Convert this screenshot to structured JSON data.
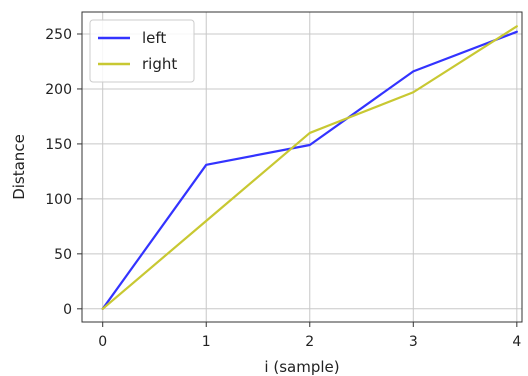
{
  "chart_data": {
    "type": "line",
    "x": [
      0,
      1,
      2,
      3,
      4
    ],
    "xticks": [
      "0",
      "1",
      "2",
      "3",
      "4"
    ],
    "yticks": [
      "0",
      "50",
      "100",
      "150",
      "200",
      "250"
    ],
    "xlim": [
      -0.2,
      4.05
    ],
    "ylim": [
      -12,
      270
    ],
    "xlabel": "i (sample)",
    "ylabel": "Distance",
    "title": "",
    "grid": true,
    "legend_position": "top-left",
    "series": [
      {
        "name": "left",
        "color": "#3333ff",
        "values": [
          0,
          131,
          149,
          216,
          252
        ]
      },
      {
        "name": "right",
        "color": "#c8c832",
        "values": [
          0,
          80,
          160,
          197,
          257
        ]
      }
    ]
  }
}
